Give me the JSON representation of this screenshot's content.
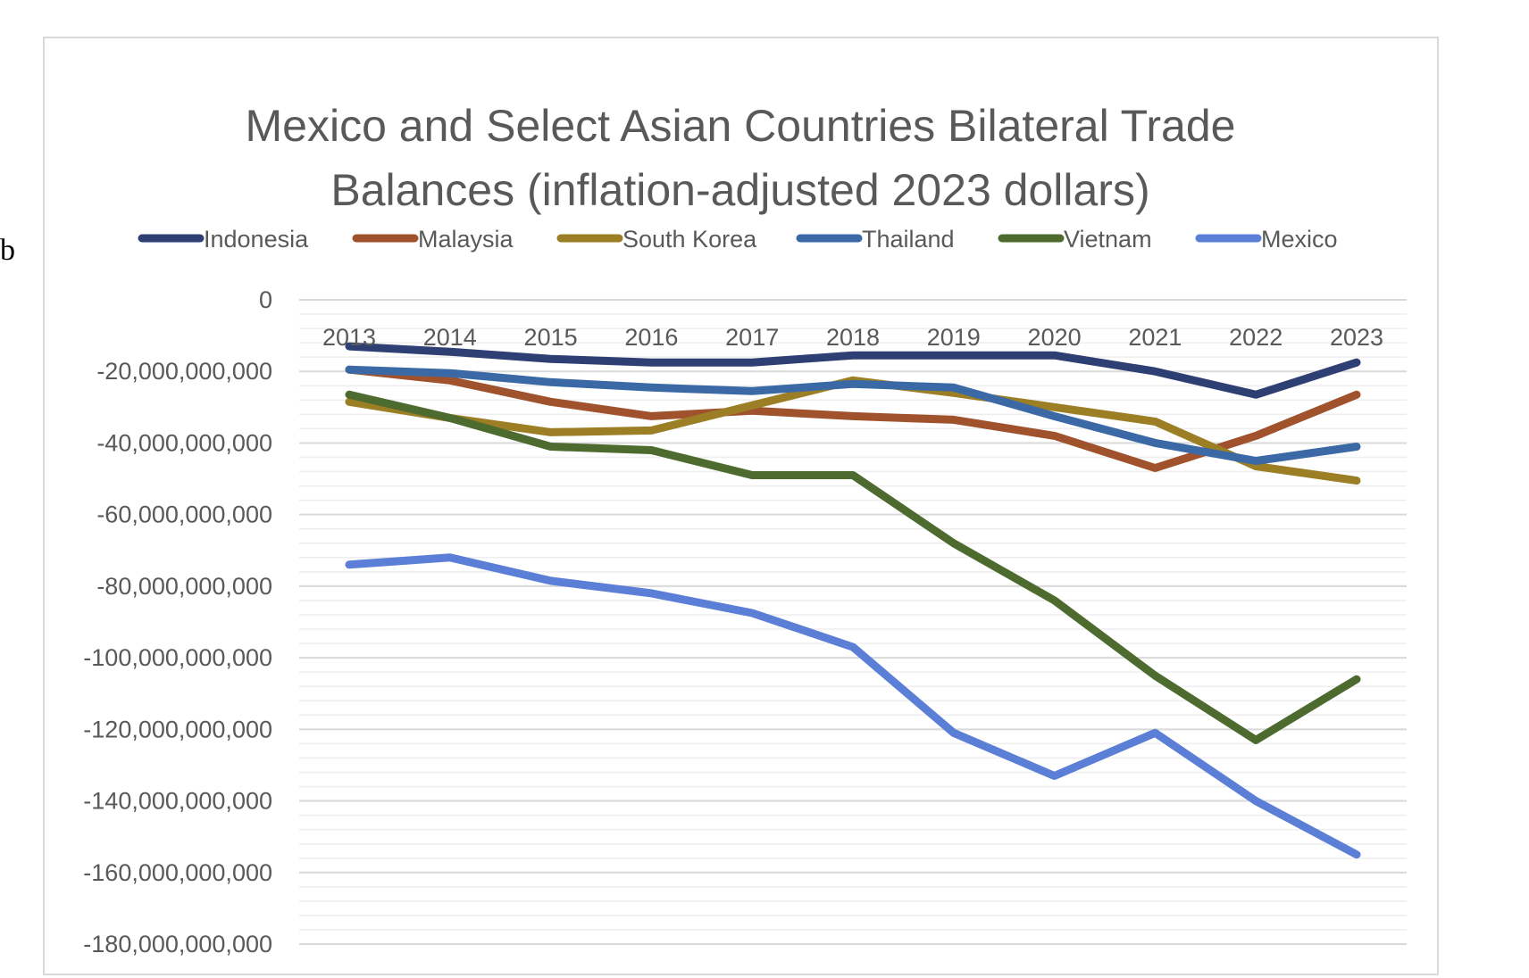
{
  "chart_data": {
    "type": "line",
    "title": "Mexico and Select Asian Countries Bilateral Trade Balances (inflation-adjusted 2023 dollars)",
    "title_lines": [
      "Mexico and Select Asian Countries Bilateral Trade",
      "Balances (inflation-adjusted 2023 dollars)"
    ],
    "xlabel": "",
    "ylabel": "",
    "categories": [
      "2013",
      "2014",
      "2015",
      "2016",
      "2017",
      "2018",
      "2019",
      "2020",
      "2021",
      "2022",
      "2023"
    ],
    "ylim": [
      -180000000000,
      0
    ],
    "y_ticks": [
      0,
      -20000000000,
      -40000000000,
      -60000000000,
      -80000000000,
      -100000000000,
      -120000000000,
      -140000000000,
      -160000000000,
      -180000000000
    ],
    "y_tick_labels": [
      "0",
      "-20,000,000,000",
      "-40,000,000,000",
      "-60,000,000,000",
      "-80,000,000,000",
      "-100,000,000,000",
      "-120,000,000,000",
      "-140,000,000,000",
      "-160,000,000,000",
      "-180,000,000,000"
    ],
    "grid": true,
    "legend_position": "top",
    "series": [
      {
        "name": "Indonesia",
        "color": "#2E3F73",
        "values": [
          -13000000000,
          -14500000000,
          -16500000000,
          -17500000000,
          -17500000000,
          -15500000000,
          -15500000000,
          -15500000000,
          -20000000000,
          -26500000000,
          -17500000000
        ]
      },
      {
        "name": "Malaysia",
        "color": "#A0522D",
        "values": [
          -19500000000,
          -22500000000,
          -28500000000,
          -32500000000,
          -31000000000,
          -32500000000,
          -33500000000,
          -38000000000,
          -47000000000,
          -38000000000,
          -26500000000
        ]
      },
      {
        "name": "South Korea",
        "color": "#9C7F24",
        "values": [
          -28500000000,
          -33000000000,
          -37000000000,
          -36500000000,
          -29500000000,
          -22500000000,
          -26000000000,
          -30000000000,
          -34000000000,
          -46500000000,
          -50500000000
        ]
      },
      {
        "name": "Thailand",
        "color": "#3B69A5",
        "values": [
          -19500000000,
          -20500000000,
          -23000000000,
          -24500000000,
          -25500000000,
          -23500000000,
          -24500000000,
          -32500000000,
          -40000000000,
          -45000000000,
          -41000000000
        ]
      },
      {
        "name": "Vietnam",
        "color": "#4D6B2E",
        "values": [
          -26500000000,
          -33000000000,
          -41000000000,
          -42000000000,
          -49000000000,
          -49000000000,
          -68000000000,
          -84000000000,
          -105000000000,
          -123000000000,
          -106000000000
        ]
      },
      {
        "name": "Mexico",
        "color": "#5B7FD6",
        "values": [
          -74000000000,
          -72000000000,
          -78500000000,
          -82000000000,
          -87500000000,
          -97000000000,
          -121000000000,
          -133000000000,
          -121000000000,
          -140000000000,
          -155000000000
        ]
      }
    ]
  }
}
